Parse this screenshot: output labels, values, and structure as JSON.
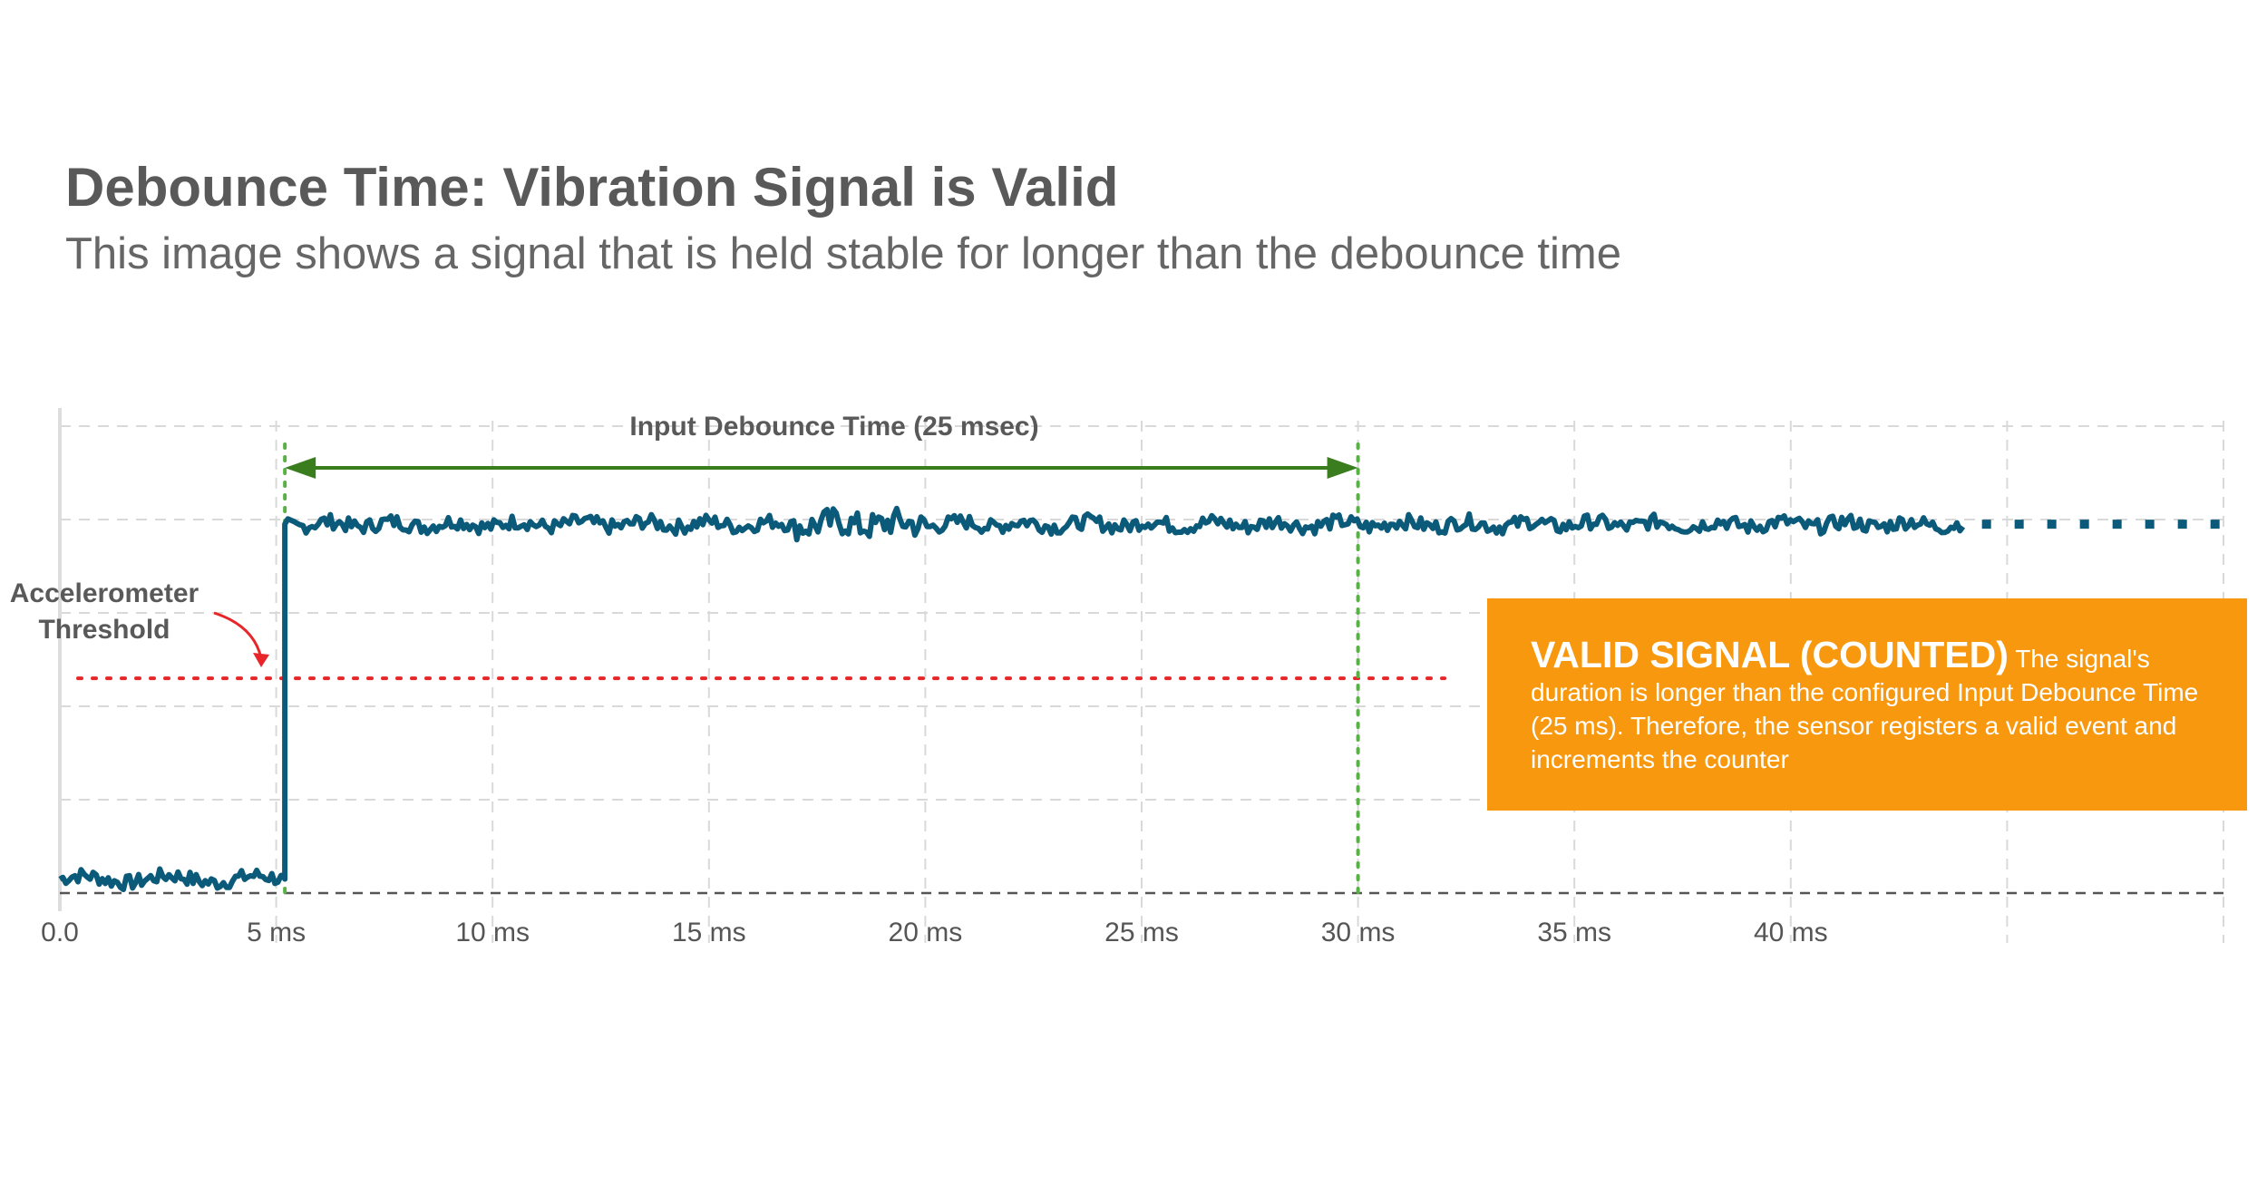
{
  "title": "Debounce Time: Vibration Signal is Valid",
  "subtitle": "This image shows a signal that is held stable for longer than the debounce time",
  "chart_data": {
    "type": "line",
    "x_unit": "ms",
    "xlim": [
      0,
      50
    ],
    "x_ticks": [
      0,
      5,
      10,
      15,
      20,
      25,
      30,
      35,
      40,
      45,
      50
    ],
    "x_tick_labels": [
      "0.0",
      "5 ms",
      "10 ms",
      "15 ms",
      "20 ms",
      "25 ms",
      "30 ms",
      "35 ms",
      "40 ms",
      "",
      ""
    ],
    "ylim": [
      0,
      5
    ],
    "y_gridlines": [
      0,
      1,
      2,
      3,
      4,
      5
    ],
    "grid": true,
    "threshold": {
      "value": 2.3,
      "x_end": 32.0,
      "color": "#e8262a",
      "label_line1": "Accelerometer",
      "label_line2": "Threshold"
    },
    "debounce_span": {
      "x_start": 5.2,
      "x_end": 30.0,
      "label": "Input Debounce Time (25 msec)",
      "color": "#3a7d1f"
    },
    "marker_color": "#59b045",
    "signal": {
      "color": "#0c5a7a",
      "low_level": 0.15,
      "high_level": 3.95,
      "step_at": 5.2,
      "end": 44.0,
      "continued_to": 50.0
    }
  },
  "callout": {
    "heading": "VALID SIGNAL (COUNTED)",
    "body": " The signal's duration is longer than the configured Input Debounce Time (25 ms). Therefore, the sensor registers a valid event and increments the counter",
    "background": "#f7980e"
  }
}
